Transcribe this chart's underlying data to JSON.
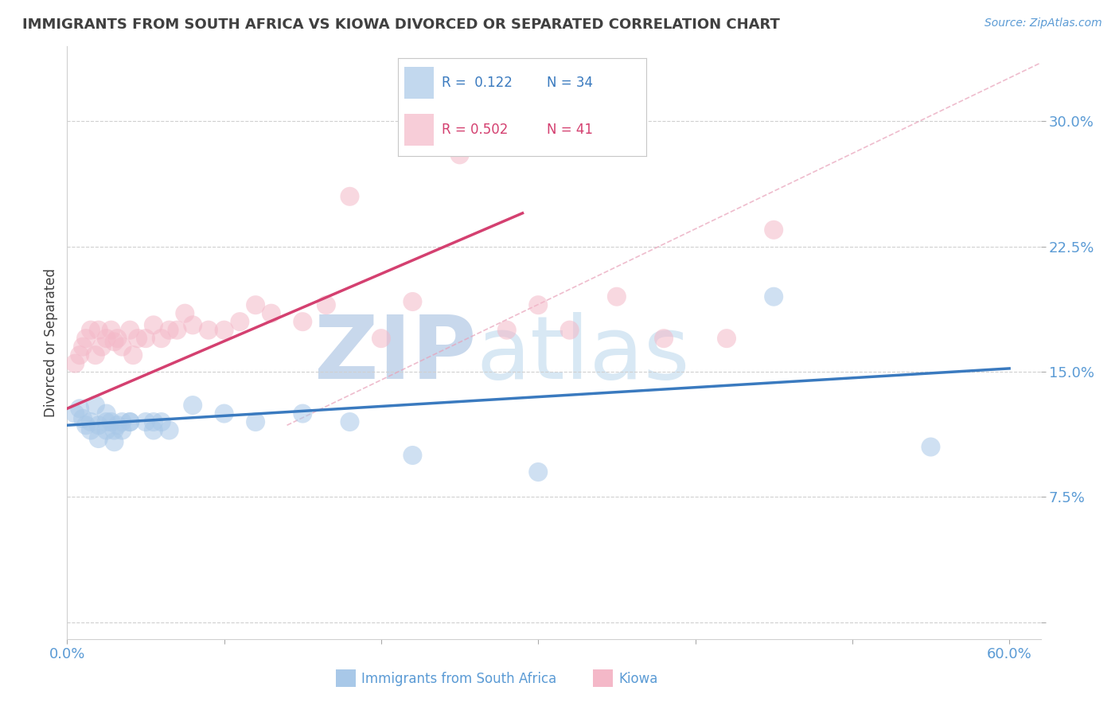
{
  "title": "IMMIGRANTS FROM SOUTH AFRICA VS KIOWA DIVORCED OR SEPARATED CORRELATION CHART",
  "source": "Source: ZipAtlas.com",
  "ylabel": "Divorced or Separated",
  "legend_labels": [
    "Immigrants from South Africa",
    "Kiowa"
  ],
  "legend_r_blue": "R =  0.122",
  "legend_r_pink": "R = 0.502",
  "legend_n_blue": "N = 34",
  "legend_n_pink": "N = 41",
  "xlim": [
    0.0,
    0.62
  ],
  "ylim": [
    -0.01,
    0.345
  ],
  "xticks": [
    0.0,
    0.1,
    0.2,
    0.3,
    0.4,
    0.5,
    0.6
  ],
  "xticklabels": [
    "0.0%",
    "",
    "",
    "",
    "",
    "",
    "60.0%"
  ],
  "yticks": [
    0.0,
    0.075,
    0.15,
    0.225,
    0.3
  ],
  "yticklabels": [
    "",
    "7.5%",
    "15.0%",
    "22.5%",
    "30.0%"
  ],
  "blue_scatter_x": [
    0.005,
    0.008,
    0.01,
    0.012,
    0.015,
    0.015,
    0.018,
    0.02,
    0.02,
    0.025,
    0.025,
    0.025,
    0.028,
    0.03,
    0.03,
    0.032,
    0.035,
    0.035,
    0.04,
    0.04,
    0.05,
    0.055,
    0.055,
    0.06,
    0.065,
    0.08,
    0.1,
    0.12,
    0.15,
    0.18,
    0.22,
    0.3,
    0.45,
    0.55
  ],
  "blue_scatter_y": [
    0.125,
    0.128,
    0.122,
    0.118,
    0.12,
    0.115,
    0.13,
    0.118,
    0.11,
    0.12,
    0.115,
    0.125,
    0.12,
    0.115,
    0.108,
    0.118,
    0.115,
    0.12,
    0.12,
    0.12,
    0.12,
    0.115,
    0.12,
    0.12,
    0.115,
    0.13,
    0.125,
    0.12,
    0.125,
    0.12,
    0.1,
    0.09,
    0.195,
    0.105
  ],
  "pink_scatter_x": [
    0.005,
    0.008,
    0.01,
    0.012,
    0.015,
    0.018,
    0.02,
    0.022,
    0.025,
    0.028,
    0.03,
    0.032,
    0.035,
    0.04,
    0.042,
    0.045,
    0.05,
    0.055,
    0.06,
    0.065,
    0.07,
    0.075,
    0.08,
    0.09,
    0.1,
    0.11,
    0.12,
    0.13,
    0.15,
    0.165,
    0.18,
    0.2,
    0.22,
    0.25,
    0.28,
    0.3,
    0.32,
    0.35,
    0.38,
    0.42,
    0.45
  ],
  "pink_scatter_y": [
    0.155,
    0.16,
    0.165,
    0.17,
    0.175,
    0.16,
    0.175,
    0.165,
    0.17,
    0.175,
    0.168,
    0.17,
    0.165,
    0.175,
    0.16,
    0.17,
    0.17,
    0.178,
    0.17,
    0.175,
    0.175,
    0.185,
    0.178,
    0.175,
    0.175,
    0.18,
    0.19,
    0.185,
    0.18,
    0.19,
    0.255,
    0.17,
    0.192,
    0.28,
    0.175,
    0.19,
    0.175,
    0.195,
    0.17,
    0.17,
    0.235
  ],
  "blue_line_x": [
    0.0,
    0.6
  ],
  "blue_line_y": [
    0.118,
    0.152
  ],
  "pink_line_x": [
    0.0,
    0.29
  ],
  "pink_line_y": [
    0.128,
    0.245
  ],
  "diag_line_x": [
    0.14,
    0.62
  ],
  "diag_line_y": [
    0.118,
    0.335
  ],
  "blue_color": "#a8c8e8",
  "pink_color": "#f4b8c8",
  "blue_line_color": "#3a7abf",
  "pink_line_color": "#d44070",
  "diag_line_color": "#e8a0b8",
  "title_color": "#404040",
  "axis_color": "#5b9bd5",
  "tick_color": "#5b9bd5",
  "background_color": "#ffffff",
  "watermark_zip": "ZIP",
  "watermark_atlas": "atlas",
  "watermark_color": "#cddff0"
}
